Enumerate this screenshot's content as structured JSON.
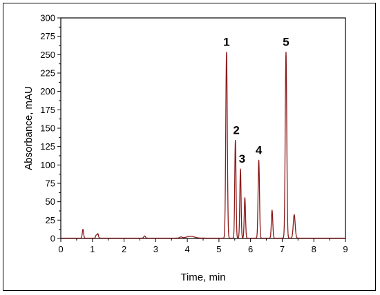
{
  "chart_data": {
    "type": "line",
    "xlabel": "Time, min",
    "ylabel": "Absorbance, mAU",
    "xlim": [
      0,
      9
    ],
    "ylim": [
      0,
      300
    ],
    "xticks": [
      0,
      1,
      2,
      3,
      4,
      5,
      6,
      7,
      8,
      9
    ],
    "yticks": [
      0,
      25,
      50,
      75,
      100,
      125,
      150,
      175,
      200,
      225,
      250,
      275,
      300
    ],
    "grid": false,
    "legend": "none",
    "line_color": "#8b1a1a",
    "baseline": 0.5,
    "peaks": [
      {
        "t": 0.7,
        "h": 12,
        "w": 0.02
      },
      {
        "t": 1.12,
        "h": 4,
        "w": 0.02
      },
      {
        "t": 1.17,
        "h": 6,
        "w": 0.02
      },
      {
        "t": 2.65,
        "h": 3,
        "w": 0.025
      },
      {
        "t": 3.8,
        "h": 1.5,
        "w": 0.04
      },
      {
        "t": 4.1,
        "h": 2.5,
        "w": 0.12
      },
      {
        "t": 5.24,
        "h": 253,
        "w": 0.024
      },
      {
        "t": 5.52,
        "h": 133,
        "w": 0.02
      },
      {
        "t": 5.68,
        "h": 94,
        "w": 0.02
      },
      {
        "t": 5.82,
        "h": 55,
        "w": 0.02
      },
      {
        "t": 6.26,
        "h": 106,
        "w": 0.022
      },
      {
        "t": 6.68,
        "h": 38,
        "w": 0.022
      },
      {
        "t": 7.12,
        "h": 253,
        "w": 0.024
      },
      {
        "t": 7.38,
        "h": 32,
        "w": 0.03
      }
    ],
    "annotations": [
      {
        "text": "1",
        "x": 5.24,
        "y": 262
      },
      {
        "text": "2",
        "x": 5.55,
        "y": 142
      },
      {
        "text": "3",
        "x": 5.73,
        "y": 103
      },
      {
        "text": "4",
        "x": 6.26,
        "y": 115
      },
      {
        "text": "5",
        "x": 7.12,
        "y": 262
      }
    ]
  }
}
